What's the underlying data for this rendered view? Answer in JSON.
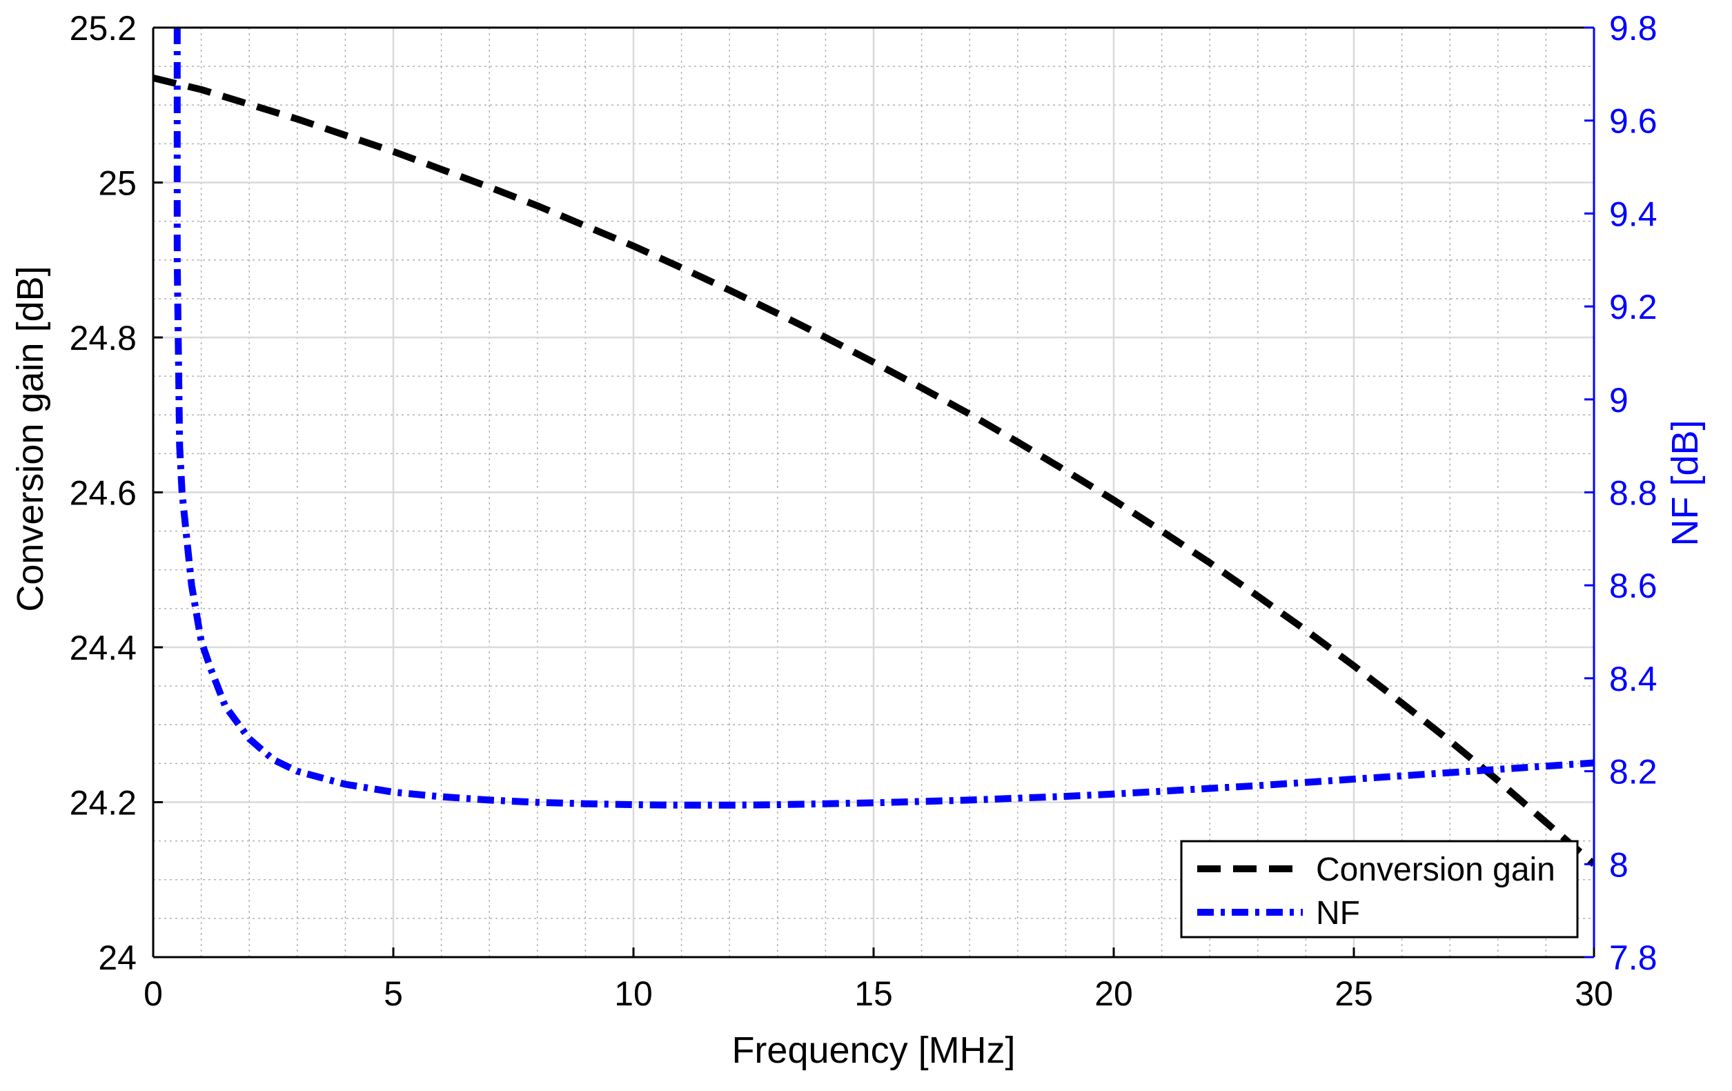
{
  "chart_data": {
    "type": "line",
    "title": "",
    "xlabel": "Frequency [MHz]",
    "ylabel_left": "Conversion gain [dB]",
    "ylabel_right": "NF [dB]",
    "xlim": [
      0,
      30
    ],
    "ylim_left": [
      24,
      25.2
    ],
    "ylim_right": [
      7.8,
      9.8
    ],
    "grid": true,
    "minor_grid": true,
    "legend_position": "bottom-right",
    "x_ticks": [
      "0",
      "5",
      "10",
      "15",
      "20",
      "25",
      "30"
    ],
    "y_left_ticks": [
      "24",
      "24.2",
      "24.4",
      "24.6",
      "24.8",
      "25",
      "25.2"
    ],
    "y_right_ticks": [
      "7.8",
      "8",
      "8.2",
      "8.4",
      "8.6",
      "8.8",
      "9",
      "9.2",
      "9.4",
      "9.6",
      "9.8"
    ],
    "colors": {
      "gain": "#000000",
      "nf": "#0000ff",
      "right_axis": "#0000ff",
      "grid_major": "#d9d9d9",
      "grid_minor": "#b0b0b0"
    },
    "series": [
      {
        "name": "Conversion gain",
        "axis": "left",
        "style": "dashed",
        "x": [
          0,
          1,
          2,
          3,
          4,
          5,
          6,
          7,
          8,
          9,
          10,
          11,
          12,
          13,
          14,
          15,
          16,
          17,
          18,
          19,
          20,
          21,
          22,
          23,
          24,
          25,
          26,
          27,
          28,
          29,
          30
        ],
        "y": [
          25.135,
          25.12,
          25.101,
          25.082,
          25.061,
          25.04,
          25.017,
          24.994,
          24.97,
          24.944,
          24.918,
          24.89,
          24.861,
          24.831,
          24.8,
          24.768,
          24.735,
          24.701,
          24.665,
          24.628,
          24.59,
          24.55,
          24.509,
          24.466,
          24.422,
          24.376,
          24.328,
          24.279,
          24.228,
          24.174,
          24.12
        ]
      },
      {
        "name": "NF",
        "axis": "right",
        "style": "dashdot",
        "x": [
          0.5,
          0.5,
          0.55,
          0.6,
          0.7,
          0.8,
          1.0,
          1.2,
          1.5,
          2.0,
          2.5,
          3.0,
          4.0,
          5.0,
          6.0,
          7.0,
          8.0,
          9.0,
          10.0,
          11.0,
          12.0,
          13.0,
          14.0,
          15.0,
          16.0,
          17.0,
          18.0,
          19.0,
          20.0,
          21.0,
          22.0,
          23.0,
          24.0,
          25.0,
          26.0,
          27.0,
          28.0,
          29.0,
          30.0
        ],
        "y": [
          9.8,
          9.3,
          8.9,
          8.8,
          8.7,
          8.6,
          8.48,
          8.42,
          8.34,
          8.27,
          8.225,
          8.2,
          8.172,
          8.155,
          8.145,
          8.138,
          8.133,
          8.13,
          8.128,
          8.127,
          8.127,
          8.128,
          8.13,
          8.132,
          8.135,
          8.138,
          8.142,
          8.146,
          8.151,
          8.157,
          8.163,
          8.169,
          8.176,
          8.183,
          8.19,
          8.197,
          8.204,
          8.211,
          8.218
        ]
      }
    ]
  }
}
